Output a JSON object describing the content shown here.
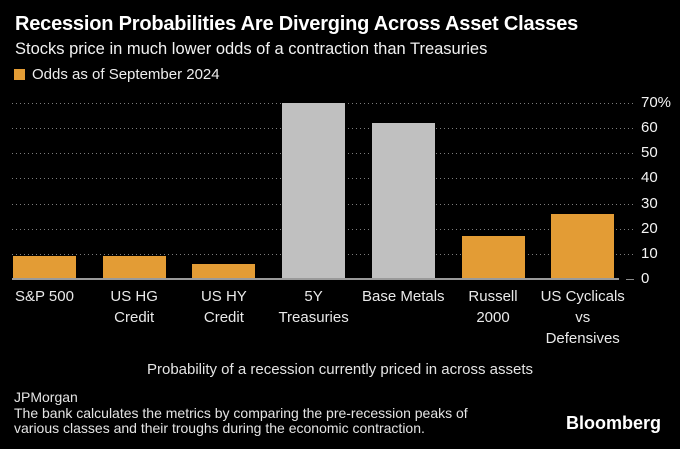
{
  "header": {
    "title": "Recession Probabilities Are Diverging Across Asset Classes",
    "subtitle": "Stocks price in much lower odds of a contraction than Treasuries"
  },
  "legend": {
    "label": "Odds as of September 2024",
    "swatch_color": "#E39C35"
  },
  "chart_data": {
    "type": "bar",
    "title": "Recession Probabilities Are Diverging Across Asset Classes",
    "subtitle": "Stocks price in much lower odds of a contraction than Treasuries",
    "series_name": "Odds as of September 2024",
    "categories": [
      "S&P 500",
      "US HG Credit",
      "US HY Credit",
      "5Y Treasuries",
      "Base Metals",
      "Russell 2000",
      "US Cyclicals vs Defensives"
    ],
    "category_label_lines": [
      [
        "S&P 500"
      ],
      [
        "US HG",
        "Credit"
      ],
      [
        "US HY",
        "Credit"
      ],
      [
        "5Y",
        "Treasuries"
      ],
      [
        "Base Metals"
      ],
      [
        "Russell",
        "2000"
      ],
      [
        "US Cyclicals",
        "vs",
        "Defensives"
      ]
    ],
    "values": [
      9,
      9,
      6,
      70,
      62,
      17,
      26
    ],
    "unit": "%",
    "bar_colors": [
      "#E39C35",
      "#E39C35",
      "#E39C35",
      "#C0C0C0",
      "#C0C0C0",
      "#E39C35",
      "#E39C35"
    ],
    "ylim": [
      0,
      70
    ],
    "yticks": [
      0,
      10,
      20,
      30,
      40,
      50,
      60,
      70
    ],
    "ytick_labels": [
      "0",
      "10",
      "20",
      "30",
      "40",
      "50",
      "60",
      "70%"
    ],
    "axis_side": "right",
    "grid": "horizontal-dotted",
    "legend_position": "top-left"
  },
  "caption": "Probability of a recession currently priced in across assets",
  "footer": {
    "source": "JPMorgan",
    "note_lines": [
      "The bank calculates the metrics by comparing the pre-recession peaks of",
      "various classes and their troughs during the economic contraction."
    ],
    "brand": "Bloomberg"
  },
  "colors": {
    "background": "#000000",
    "accent_orange": "#E39C35",
    "neutral_bar_gray": "#C0C0C0",
    "gridline": "#7D7D7D",
    "baseline": "#9A9A9A",
    "text": "#FFFFFF"
  }
}
